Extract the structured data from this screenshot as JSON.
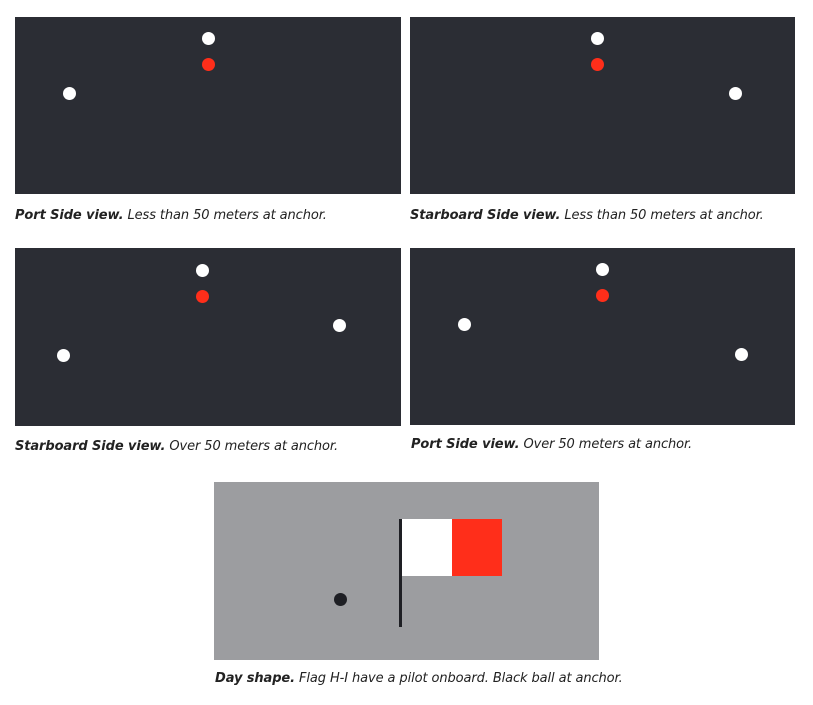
{
  "colors": {
    "night_panel": "#2b2d34",
    "day_panel": "#9c9da0",
    "white_light": "#ffffff",
    "red_light": "#ff2e1a",
    "black_ball": "#1e1f24"
  },
  "panels": [
    {
      "caption_bold": "Port Side view.",
      "caption_text": " Less than 50 meters at anchor."
    },
    {
      "caption_bold": "Starboard Side view.",
      "caption_text": " Less than 50 meters at anchor."
    },
    {
      "caption_bold": "Starboard Side view.",
      "caption_text": " Over 50 meters at anchor."
    },
    {
      "caption_bold": "Port Side view.",
      "caption_text": " Over 50 meters at anchor."
    }
  ],
  "day_shape": {
    "caption_bold": "Day shape.",
    "caption_text": " Flag H-I have a pilot onboard. Black ball at anchor."
  }
}
